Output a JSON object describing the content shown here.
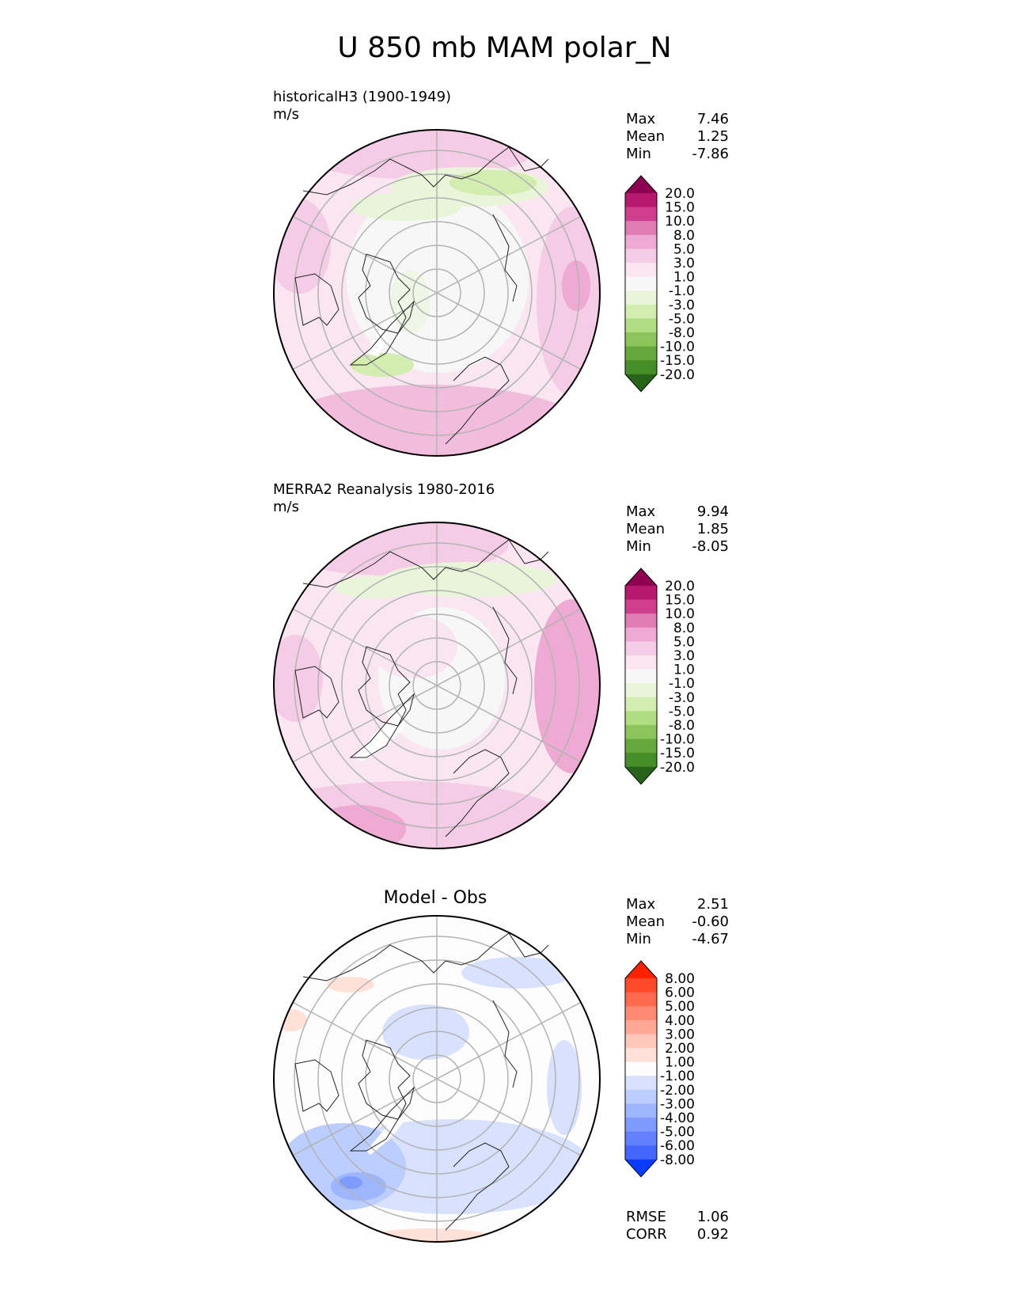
{
  "title": "U 850 mb MAM polar_N",
  "panels": [
    {
      "id": "model",
      "title": "historicalH3 (1900-1949)",
      "units": "m/s",
      "stats": [
        {
          "label": "Max",
          "value": "7.46"
        },
        {
          "label": "Mean",
          "value": "1.25"
        },
        {
          "label": "Min",
          "value": "-7.86"
        }
      ],
      "colorbar": {
        "labels": [
          "20.0",
          "15.0",
          "10.0",
          "8.0",
          "5.0",
          "3.0",
          "1.0",
          "-1.0",
          "-3.0",
          "-5.0",
          "-8.0",
          "-10.0",
          "-15.0",
          "-20.0"
        ],
        "colors": [
          "#8e0152",
          "#b7196f",
          "#cf3f8d",
          "#e07db4",
          "#eeaad3",
          "#f5cce5",
          "#fae6f1",
          "#f7f7f7",
          "#e9f5d9",
          "#d3ecb0",
          "#b0dc82",
          "#8cc55b",
          "#66a83b",
          "#458e28",
          "#276419"
        ]
      }
    },
    {
      "id": "obs",
      "title": "MERRA2 Reanalysis 1980-2016",
      "units": "m/s",
      "stats": [
        {
          "label": "Max",
          "value": "9.94"
        },
        {
          "label": "Mean",
          "value": "1.85"
        },
        {
          "label": "Min",
          "value": "-8.05"
        }
      ],
      "colorbar": {
        "labels": [
          "20.0",
          "15.0",
          "10.0",
          "8.0",
          "5.0",
          "3.0",
          "1.0",
          "-1.0",
          "-3.0",
          "-5.0",
          "-8.0",
          "-10.0",
          "-15.0",
          "-20.0"
        ],
        "colors": [
          "#8e0152",
          "#b7196f",
          "#cf3f8d",
          "#e07db4",
          "#eeaad3",
          "#f5cce5",
          "#fae6f1",
          "#f7f7f7",
          "#e9f5d9",
          "#d3ecb0",
          "#b0dc82",
          "#8cc55b",
          "#66a83b",
          "#458e28",
          "#276419"
        ]
      }
    },
    {
      "id": "diff",
      "title": "Model - Obs",
      "stats": [
        {
          "label": "Max",
          "value": "2.51"
        },
        {
          "label": "Mean",
          "value": "-0.60"
        },
        {
          "label": "Min",
          "value": "-4.67"
        }
      ],
      "colorbar": {
        "labels": [
          "8.00",
          "6.00",
          "5.00",
          "4.00",
          "3.00",
          "2.00",
          "1.00",
          "-1.00",
          "-2.00",
          "-3.00",
          "-4.00",
          "-5.00",
          "-6.00",
          "-8.00"
        ],
        "colors": [
          "#ff2000",
          "#ff4a2a",
          "#ff6a4f",
          "#ff8a73",
          "#ffa898",
          "#ffc6ba",
          "#ffe1d8",
          "#fdfdfd",
          "#d8e2ff",
          "#bccdff",
          "#9eb5ff",
          "#7f9bff",
          "#6381ff",
          "#4466ff",
          "#0a3cff"
        ]
      },
      "extra_stats": [
        {
          "label": "RMSE",
          "value": "1.06"
        },
        {
          "label": "CORR",
          "value": "0.92"
        }
      ]
    }
  ]
}
